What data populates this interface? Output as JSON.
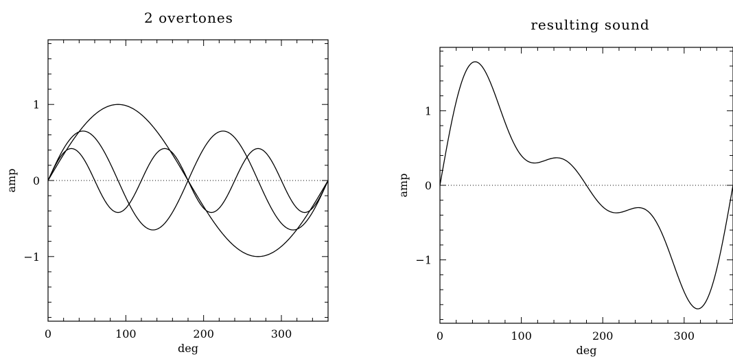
{
  "chart_data": [
    {
      "type": "line",
      "title": "2 overtones",
      "xlabel": "deg",
      "ylabel": "amp",
      "xlim": [
        0,
        360
      ],
      "ylim": [
        -1.85,
        1.85
      ],
      "x_ticks": [
        0,
        100,
        200,
        300
      ],
      "x_tick_labels": [
        "0",
        "100",
        "200",
        "300"
      ],
      "y_ticks": [
        -1,
        0,
        1
      ],
      "y_tick_labels": [
        "−1",
        "0",
        "1"
      ],
      "zero_line": "dotted",
      "grid": false,
      "series": [
        {
          "formula": "sin(x)",
          "amplitude": 1.0,
          "harmonic": 1
        },
        {
          "formula": "0.65*sin(2x)",
          "amplitude": 0.65,
          "harmonic": 2
        },
        {
          "formula": "0.42*sin(3x)",
          "amplitude": 0.42,
          "harmonic": 3
        }
      ]
    },
    {
      "type": "line",
      "title": "resulting sound",
      "xlabel": "deg",
      "ylabel": "amp",
      "xlim": [
        0,
        360
      ],
      "ylim": [
        -1.85,
        1.85
      ],
      "x_ticks": [
        0,
        100,
        200,
        300
      ],
      "x_tick_labels": [
        "0",
        "100",
        "200",
        "300"
      ],
      "y_ticks": [
        -1,
        0,
        1
      ],
      "y_tick_labels": [
        "−1",
        "0",
        "1"
      ],
      "zero_line": "dotted",
      "grid": false,
      "series": [
        {
          "formula": "sin(x)+0.65*sin(2x)+0.42*sin(3x)",
          "components": [
            1.0,
            0.65,
            0.42
          ]
        }
      ]
    }
  ]
}
